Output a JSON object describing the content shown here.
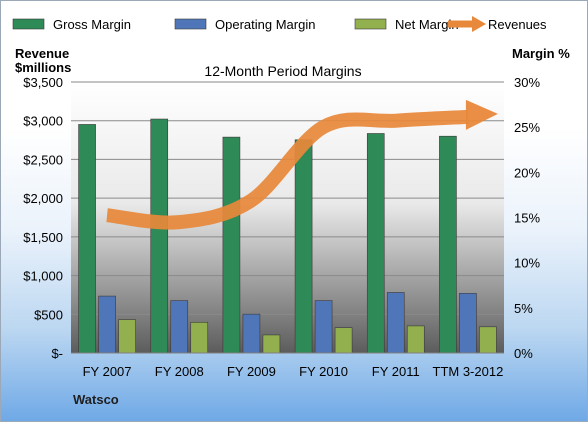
{
  "chart_data": {
    "type": "bar",
    "title": "12-Month Period Margins",
    "company": "Watsco",
    "categories": [
      "FY 2007",
      "FY 2008",
      "FY 2009",
      "FY 2010",
      "FY 2011",
      "TTM 3-2012"
    ],
    "left_axis": {
      "label_line1": "Revenue",
      "label_line2": "$millions",
      "ticks": [
        "$-",
        "$500",
        "$1,000",
        "$1,500",
        "$2,000",
        "$2,500",
        "$3,000",
        "$3,500"
      ],
      "ylim": [
        0,
        3500
      ]
    },
    "right_axis": {
      "label": "Margin %",
      "ticks": [
        "0%",
        "5%",
        "10%",
        "15%",
        "20%",
        "25%",
        "30%"
      ],
      "ylim": [
        0,
        30
      ]
    },
    "legend_position": "top",
    "series": [
      {
        "name": "Gross Margin",
        "type": "bar",
        "axis": "right",
        "color": "#2e8b57",
        "values": [
          25.3,
          25.9,
          23.9,
          23.6,
          24.3,
          24.0
        ]
      },
      {
        "name": "Operating Margin",
        "type": "bar",
        "axis": "right",
        "color": "#4f76b8",
        "values": [
          6.3,
          5.8,
          4.3,
          5.8,
          6.7,
          6.6
        ]
      },
      {
        "name": "Net Margin",
        "type": "bar",
        "axis": "right",
        "color": "#93b04e",
        "values": [
          3.7,
          3.4,
          2.0,
          2.8,
          3.0,
          2.9
        ]
      },
      {
        "name": "Revenues",
        "type": "line",
        "axis": "left",
        "color": "#e8883a",
        "values": [
          1780,
          1690,
          1970,
          2920,
          3000,
          3050
        ]
      }
    ]
  }
}
